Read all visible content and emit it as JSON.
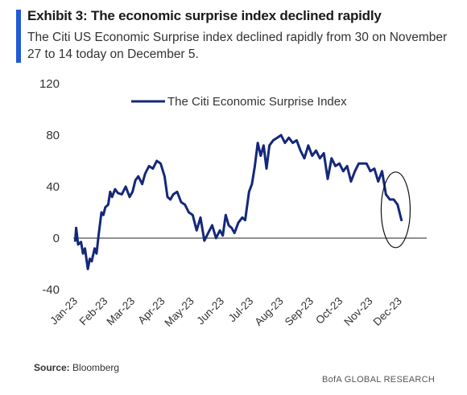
{
  "header": {
    "title": "Exhibit 3: The economic surprise index declined rapidly",
    "subtitle": "The Citi US Economic Surprise index declined rapidly from 30 on November 27 to 14 today on December 5."
  },
  "footer": {
    "source_label": "Source:",
    "source_value": "Bloomberg",
    "credit": "BofA GLOBAL RESEARCH"
  },
  "colors": {
    "series": "#14287a",
    "accent": "#1f5bd6",
    "zero_line": "#222222"
  },
  "chart_data": {
    "type": "line",
    "title": "",
    "xlabel": "",
    "ylabel": "",
    "ylim": [
      -40,
      120
    ],
    "yticks": [
      -40,
      0,
      40,
      80,
      120
    ],
    "xlim": [
      "2023-01-01",
      "2023-12-31"
    ],
    "xticks": [
      {
        "date": "2023-01-01",
        "label": "Jan-23"
      },
      {
        "date": "2023-02-01",
        "label": "Feb-23"
      },
      {
        "date": "2023-03-01",
        "label": "Mar-23"
      },
      {
        "date": "2023-04-01",
        "label": "Apr-23"
      },
      {
        "date": "2023-05-01",
        "label": "May-23"
      },
      {
        "date": "2023-06-01",
        "label": "Jun-23"
      },
      {
        "date": "2023-07-01",
        "label": "Jul-23"
      },
      {
        "date": "2023-08-01",
        "label": "Aug-23"
      },
      {
        "date": "2023-09-01",
        "label": "Sep-23"
      },
      {
        "date": "2023-10-01",
        "label": "Oct-23"
      },
      {
        "date": "2023-11-01",
        "label": "Nov-23"
      },
      {
        "date": "2023-12-01",
        "label": "Dec-23"
      }
    ],
    "grid": false,
    "legend": "top-center",
    "series": [
      {
        "name": "The Citi Economic Surprise Index",
        "x": [
          "2023-01-03",
          "2023-01-04",
          "2023-01-06",
          "2023-01-09",
          "2023-01-11",
          "2023-01-13",
          "2023-01-16",
          "2023-01-18",
          "2023-01-20",
          "2023-01-23",
          "2023-01-25",
          "2023-01-27",
          "2023-01-30",
          "2023-02-01",
          "2023-02-03",
          "2023-02-06",
          "2023-02-08",
          "2023-02-10",
          "2023-02-13",
          "2023-02-16",
          "2023-02-20",
          "2023-02-24",
          "2023-02-28",
          "2023-03-03",
          "2023-03-06",
          "2023-03-09",
          "2023-03-13",
          "2023-03-16",
          "2023-03-20",
          "2023-03-24",
          "2023-03-28",
          "2023-04-01",
          "2023-04-05",
          "2023-04-08",
          "2023-04-11",
          "2023-04-14",
          "2023-04-18",
          "2023-04-22",
          "2023-04-26",
          "2023-04-30",
          "2023-05-04",
          "2023-05-08",
          "2023-05-12",
          "2023-05-16",
          "2023-05-20",
          "2023-05-24",
          "2023-05-28",
          "2023-06-01",
          "2023-06-04",
          "2023-06-07",
          "2023-06-10",
          "2023-06-13",
          "2023-06-16",
          "2023-06-20",
          "2023-06-24",
          "2023-06-27",
          "2023-07-01",
          "2023-07-04",
          "2023-07-07",
          "2023-07-10",
          "2023-07-13",
          "2023-07-16",
          "2023-07-19",
          "2023-07-22",
          "2023-07-26",
          "2023-07-30",
          "2023-08-03",
          "2023-08-07",
          "2023-08-11",
          "2023-08-15",
          "2023-08-19",
          "2023-08-23",
          "2023-08-27",
          "2023-08-31",
          "2023-09-04",
          "2023-09-08",
          "2023-09-12",
          "2023-09-16",
          "2023-09-20",
          "2023-09-24",
          "2023-09-28",
          "2023-10-02",
          "2023-10-06",
          "2023-10-10",
          "2023-10-14",
          "2023-10-18",
          "2023-10-22",
          "2023-10-26",
          "2023-10-30",
          "2023-11-03",
          "2023-11-07",
          "2023-11-11",
          "2023-11-15",
          "2023-11-19",
          "2023-11-23",
          "2023-11-27",
          "2023-12-01",
          "2023-12-05"
        ],
        "y": [
          -2,
          8,
          -5,
          -3,
          -12,
          -8,
          -24,
          -16,
          -18,
          -8,
          -12,
          2,
          20,
          18,
          24,
          26,
          36,
          32,
          38,
          35,
          34,
          40,
          32,
          36,
          45,
          48,
          42,
          50,
          56,
          54,
          60,
          58,
          48,
          32,
          30,
          34,
          36,
          28,
          26,
          20,
          18,
          6,
          16,
          -2,
          4,
          10,
          0,
          6,
          2,
          18,
          10,
          8,
          4,
          12,
          16,
          14,
          36,
          42,
          56,
          74,
          64,
          72,
          54,
          72,
          76,
          78,
          80,
          74,
          78,
          74,
          76,
          68,
          62,
          72,
          64,
          68,
          62,
          66,
          46,
          62,
          56,
          58,
          52,
          56,
          44,
          52,
          58,
          58,
          58,
          52,
          54,
          44,
          52,
          34,
          30,
          30,
          26,
          14
        ]
      }
    ],
    "annotation": {
      "type": "ellipse",
      "target": "December decline"
    }
  }
}
